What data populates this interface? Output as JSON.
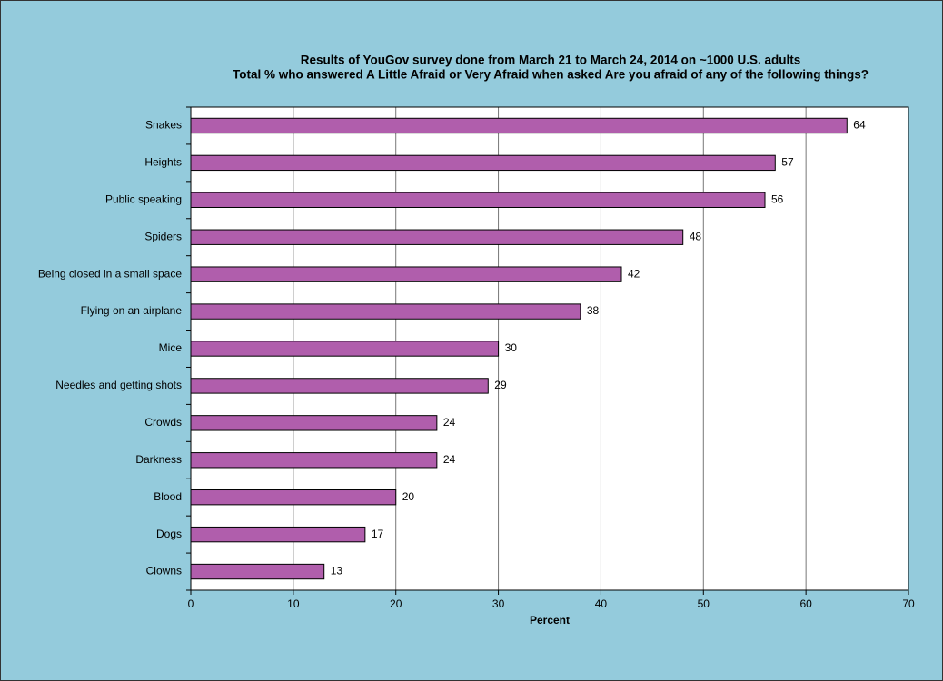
{
  "chart_data": {
    "type": "bar",
    "orientation": "horizontal",
    "title": "Results of YouGov survey done from March 21 to March 24, 2014 on ~1000 U.S. adults",
    "subtitle": "Total % who answered A Little Afraid or Very Afraid when asked Are you afraid of any of the following things?",
    "x_label": "Percent",
    "categories": [
      "Snakes",
      "Heights",
      "Public speaking",
      "Spiders",
      "Being closed in a small space",
      "Flying on an airplane",
      "Mice",
      "Needles and getting shots",
      "Crowds",
      "Darkness",
      "Blood",
      "Dogs",
      "Clowns"
    ],
    "values": [
      64,
      57,
      56,
      48,
      42,
      38,
      30,
      29,
      24,
      24,
      20,
      17,
      13
    ],
    "color": "#b05eac",
    "xlim": [
      0,
      70
    ],
    "xticks": [
      0,
      10,
      20,
      30,
      40,
      50,
      60,
      70
    ],
    "grid": true,
    "data_labels": true
  }
}
